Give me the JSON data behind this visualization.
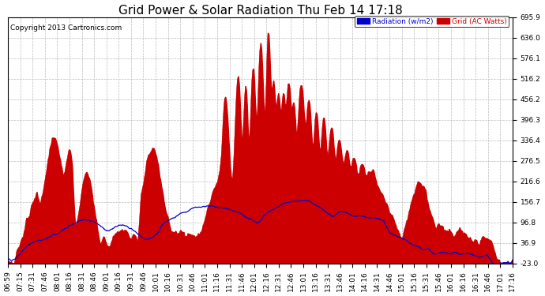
{
  "title": "Grid Power & Solar Radiation Thu Feb 14 17:18",
  "copyright": "Copyright 2013 Cartronics.com",
  "legend_radiation": "Radiation (w/m2)",
  "legend_grid": "Grid (AC Watts)",
  "ylabel_right_ticks": [
    -23.0,
    36.9,
    96.8,
    156.7,
    216.6,
    276.5,
    336.4,
    396.3,
    456.2,
    516.2,
    576.1,
    636.0,
    695.9
  ],
  "ylim": [
    -23.0,
    695.9
  ],
  "xtick_labels": [
    "06:59",
    "07:15",
    "07:31",
    "07:46",
    "08:01",
    "08:16",
    "08:31",
    "08:46",
    "09:01",
    "09:16",
    "09:31",
    "09:46",
    "10:01",
    "10:16",
    "10:31",
    "10:46",
    "11:01",
    "11:16",
    "11:31",
    "11:46",
    "12:01",
    "12:16",
    "12:31",
    "12:46",
    "13:01",
    "13:16",
    "13:31",
    "13:46",
    "14:01",
    "14:16",
    "14:31",
    "14:46",
    "15:01",
    "15:16",
    "15:31",
    "15:46",
    "16:01",
    "16:16",
    "16:31",
    "16:46",
    "17:01",
    "17:16"
  ],
  "bg_color": "#ffffff",
  "grid_color": "#bbbbbb",
  "red_color": "#cc0000",
  "blue_color": "#0000cc",
  "title_fontsize": 11,
  "copyright_fontsize": 6.5,
  "tick_fontsize": 6.5
}
